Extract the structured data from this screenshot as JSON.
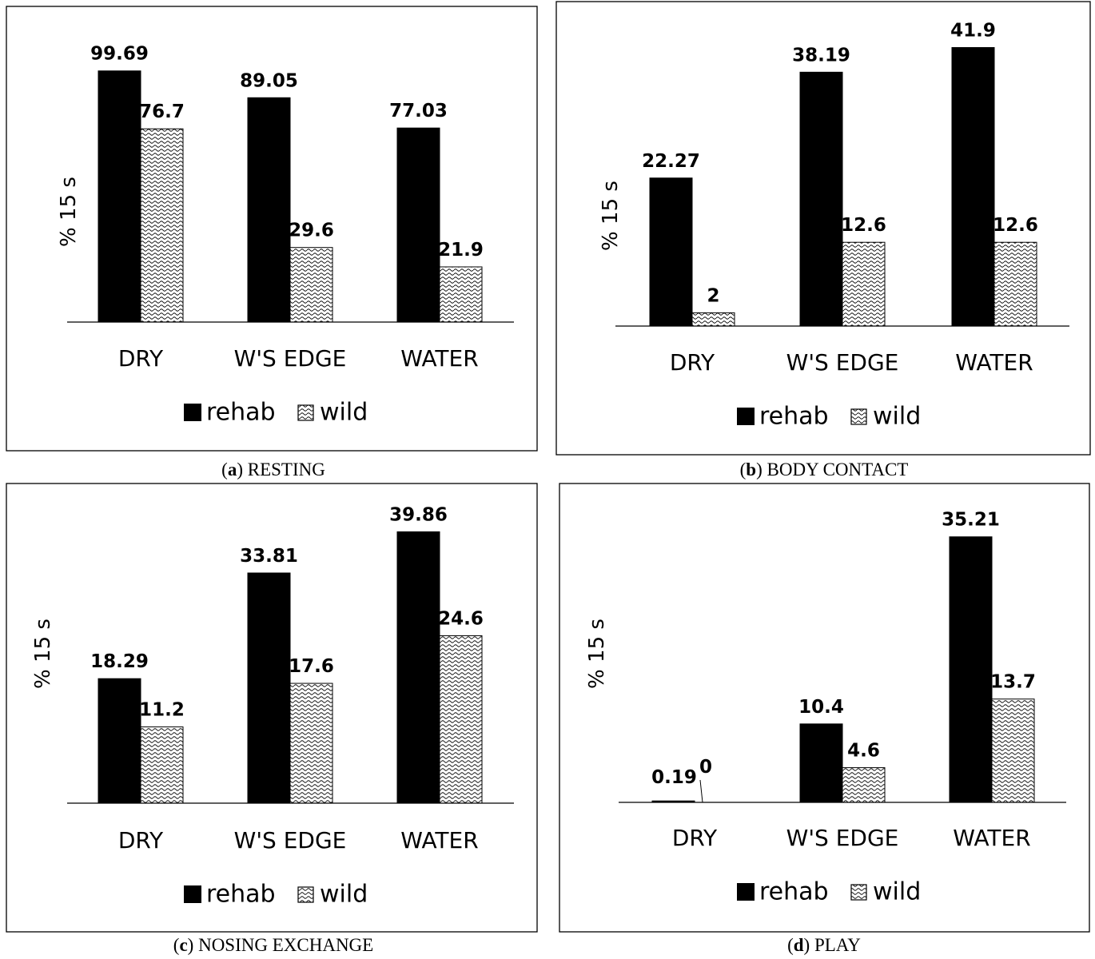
{
  "colors": {
    "rehab": "#000000",
    "wild_pattern": "wave-hatch",
    "frame": "#000000"
  },
  "chart_data": [
    {
      "type": "bar",
      "panel_letter": "a",
      "caption": "RESTING",
      "ylabel": "% 15 s",
      "categories": [
        "DRY",
        "W'S EDGE",
        "WATER"
      ],
      "series": [
        {
          "name": "rehab",
          "values": [
            99.69,
            89.05,
            77.03
          ],
          "labels": [
            "99.69",
            "89.05",
            "77.03"
          ]
        },
        {
          "name": "wild",
          "values": [
            76.7,
            29.6,
            21.9
          ],
          "labels": [
            "76.7",
            "29.6",
            "21.9"
          ]
        }
      ],
      "ylim": [
        0,
        105
      ],
      "legend": "bottom",
      "grid": false
    },
    {
      "type": "bar",
      "panel_letter": "b",
      "caption": "BODY CONTACT",
      "ylabel": "% 15 s",
      "categories": [
        "DRY",
        "W'S EDGE",
        "WATER"
      ],
      "series": [
        {
          "name": "rehab",
          "values": [
            22.27,
            38.19,
            41.9
          ],
          "labels": [
            "22.27",
            "38.19",
            "41.9"
          ]
        },
        {
          "name": "wild",
          "values": [
            2,
            12.6,
            12.6
          ],
          "labels": [
            "2",
            "12.6",
            "12.6"
          ]
        }
      ],
      "ylim": [
        0,
        44
      ],
      "legend": "bottom",
      "grid": false
    },
    {
      "type": "bar",
      "panel_letter": "c",
      "caption": "NOSING EXCHANGE",
      "ylabel": "% 15 s",
      "categories": [
        "DRY",
        "W'S EDGE",
        "WATER"
      ],
      "series": [
        {
          "name": "rehab",
          "values": [
            18.29,
            33.81,
            39.86
          ],
          "labels": [
            "18.29",
            "33.81",
            "39.86"
          ]
        },
        {
          "name": "wild",
          "values": [
            11.2,
            17.6,
            24.6
          ],
          "labels": [
            "11.2",
            "17.6",
            "24.6"
          ]
        }
      ],
      "ylim": [
        0,
        40.5
      ],
      "legend": "bottom",
      "grid": false
    },
    {
      "type": "bar",
      "panel_letter": "d",
      "caption": "PLAY",
      "ylabel": "% 15 s",
      "categories": [
        "DRY",
        "W'S EDGE",
        "WATER"
      ],
      "series": [
        {
          "name": "rehab",
          "values": [
            0.19,
            10.4,
            35.21
          ],
          "labels": [
            "0.19",
            "10.4",
            "35.21"
          ]
        },
        {
          "name": "wild",
          "values": [
            0,
            4.6,
            13.7
          ],
          "labels": [
            "0",
            "4.6",
            "13.7"
          ]
        }
      ],
      "ylim": [
        0,
        35.5
      ],
      "legend": "bottom",
      "grid": false
    }
  ]
}
